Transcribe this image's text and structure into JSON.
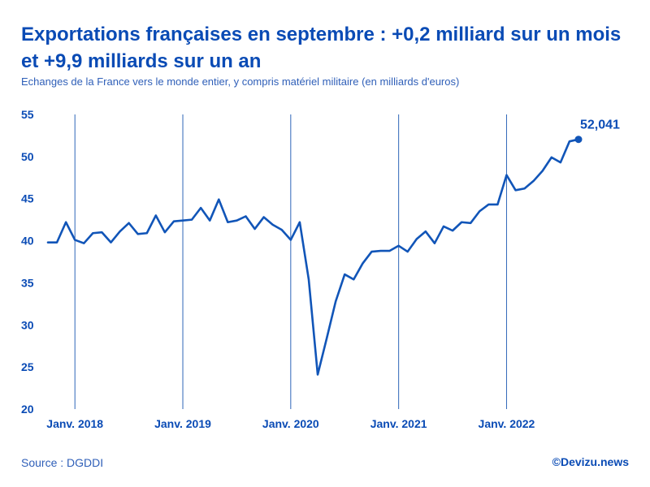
{
  "title": "Exportations françaises en septembre : +0,2 milliard sur un mois et +9,9 milliards sur un an",
  "subtitle": "Echanges de la France vers le monde entier, y compris matériel militaire (en milliards d'euros)",
  "source": "Source : DGDDI",
  "credit": "©Devizu.news",
  "colors": {
    "line": "#1155b8",
    "title": "#0a4bb5",
    "grid": "#2e66b8",
    "text": "#0a4bb5"
  },
  "chart_data": {
    "type": "line",
    "title": "Exportations françaises en septembre : +0,2 milliard sur un mois et +9,9 milliards sur un an",
    "xlabel": "",
    "ylabel": "milliards d'euros",
    "ylim": [
      20,
      55
    ],
    "yticks": [
      "20",
      "25",
      "30",
      "35",
      "40",
      "45",
      "50",
      "55"
    ],
    "xticks": [
      {
        "label": "Janv. 2018",
        "index": 3
      },
      {
        "label": "Janv. 2019",
        "index": 15
      },
      {
        "label": "Janv. 2020",
        "index": 27
      },
      {
        "label": "Janv. 2021",
        "index": 39
      },
      {
        "label": "Janv. 2022",
        "index": 51
      }
    ],
    "x_start": "Oct. 2017",
    "x_end": "Sept. 2022",
    "series": [
      {
        "name": "Exportations",
        "values": [
          39.8,
          39.8,
          42.2,
          40.1,
          39.7,
          40.9,
          41.0,
          39.8,
          41.1,
          42.1,
          40.8,
          40.9,
          43.0,
          41.0,
          42.3,
          42.4,
          42.5,
          43.9,
          42.4,
          44.9,
          42.2,
          42.4,
          42.9,
          41.4,
          42.8,
          41.9,
          41.3,
          40.1,
          42.2,
          35.4,
          24.1,
          28.4,
          32.8,
          36.0,
          35.4,
          37.3,
          38.7,
          38.8,
          38.8,
          39.4,
          38.7,
          40.2,
          41.1,
          39.7,
          41.7,
          41.2,
          42.2,
          42.1,
          43.5,
          44.3,
          44.3,
          47.8,
          46.0,
          46.2,
          47.1,
          48.3,
          49.9,
          49.3,
          51.8,
          52.041
        ]
      }
    ],
    "last_label": "52,041"
  }
}
